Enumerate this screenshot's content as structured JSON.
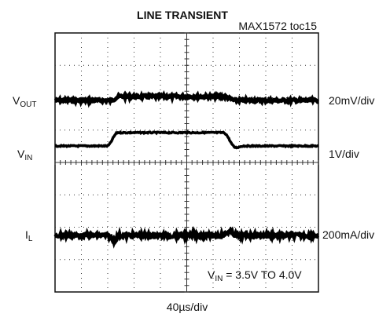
{
  "title": "LINE TRANSIENT",
  "figure_id": "MAX1572 toc15",
  "left_labels": [
    {
      "main": "V",
      "sub": "OUT"
    },
    {
      "main": "V",
      "sub": "IN"
    },
    {
      "main": "I",
      "sub": "L"
    }
  ],
  "right_labels": [
    "20mV/div",
    "1V/div",
    "200mA/div"
  ],
  "annotation": {
    "main": "V",
    "sub": "IN",
    "rest": " = 3.5V TO 4.0V"
  },
  "time_scale": "40µs/div"
}
